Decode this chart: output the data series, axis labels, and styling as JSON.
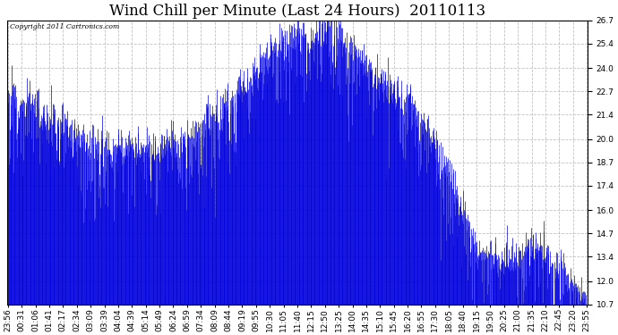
{
  "title": "Wind Chill per Minute (Last 24 Hours)  20110113",
  "copyright_text": "Copyright 2011 Cartronics.com",
  "ylim_min": 10.7,
  "ylim_max": 26.7,
  "yticks": [
    10.7,
    12.0,
    13.4,
    14.7,
    16.0,
    17.4,
    18.7,
    20.0,
    21.4,
    22.7,
    24.0,
    25.4,
    26.7
  ],
  "bar_color": "#0000dd",
  "bg_color": "#ffffff",
  "grid_color": "#bbbbbb",
  "title_fontsize": 12,
  "tick_fontsize": 6.5,
  "n_minutes": 1440,
  "xtick_labels": [
    "23:56",
    "00:31",
    "01:06",
    "01:41",
    "02:17",
    "02:34",
    "03:09",
    "03:39",
    "04:04",
    "04:39",
    "05:14",
    "05:49",
    "06:24",
    "06:59",
    "07:34",
    "08:09",
    "08:44",
    "09:19",
    "09:55",
    "10:30",
    "11:05",
    "11:40",
    "12:15",
    "12:50",
    "13:25",
    "14:00",
    "14:35",
    "15:10",
    "15:45",
    "16:20",
    "16:55",
    "17:30",
    "18:05",
    "18:40",
    "19:15",
    "19:50",
    "20:25",
    "21:00",
    "21:35",
    "22:10",
    "22:45",
    "23:20",
    "23:55"
  ]
}
